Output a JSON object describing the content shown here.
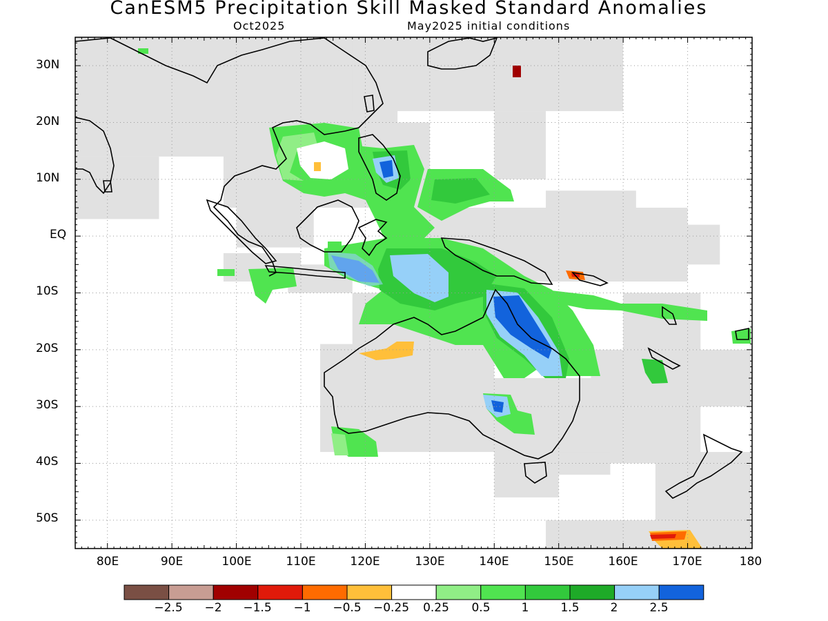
{
  "title": "CanESM5 Precipitation Skill Masked Standard Anomalies",
  "subtitle_left": "Oct2025",
  "subtitle_right": "May2025 initial conditions",
  "map": {
    "lat_labels": [
      "30N",
      "20N",
      "10N",
      "EQ",
      "10S",
      "20S",
      "30S",
      "40S",
      "50S"
    ],
    "lon_labels": [
      "80E",
      "90E",
      "100E",
      "110E",
      "120E",
      "130E",
      "140E",
      "150E",
      "160E",
      "170E",
      "180"
    ],
    "lon_range": [
      75,
      180
    ],
    "lat_range": [
      -55,
      35
    ],
    "grid": "dotted",
    "land_outline_color": "#000000",
    "masked_color": "#e1e1e1"
  },
  "colorbar": {
    "colors": [
      "#7a4f44",
      "#c89d93",
      "#a00000",
      "#e01a0a",
      "#ff6b00",
      "#ffbf3a",
      "#ffffff",
      "#90ee86",
      "#50e450",
      "#32c93c",
      "#1eaa28",
      "#96d0f8",
      "#1263dc"
    ],
    "labels": [
      "-2.5",
      "-2",
      "-1.5",
      "-1",
      "-0.5",
      "-0.25",
      "0.25",
      "0.5",
      "1",
      "1.5",
      "2",
      "2.5"
    ]
  }
}
